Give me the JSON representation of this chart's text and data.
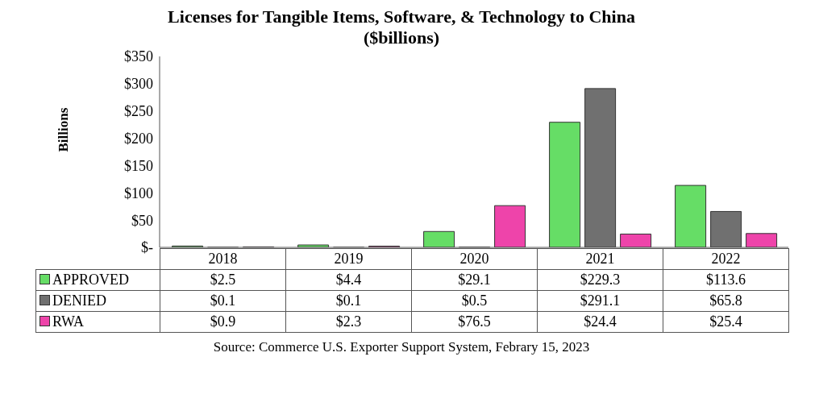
{
  "chart_data": {
    "type": "bar",
    "title": "Licenses for Tangible Items, Software, & Technology to China",
    "subtitle": "($billions)",
    "ylabel": "Billions",
    "categories": [
      "2018",
      "2019",
      "2020",
      "2021",
      "2022"
    ],
    "series": [
      {
        "name": "APPROVED",
        "color": "#66dd66",
        "values": [
          2.5,
          4.4,
          29.1,
          229.3,
          113.6
        ],
        "value_labels": [
          "$2.5",
          "$4.4",
          "$29.1",
          "$229.3",
          "$113.6"
        ]
      },
      {
        "name": "DENIED",
        "color": "#707070",
        "values": [
          0.1,
          0.1,
          0.5,
          291.1,
          65.8
        ],
        "value_labels": [
          "$0.1",
          "$0.1",
          "$0.5",
          "$291.1",
          "$65.8"
        ]
      },
      {
        "name": "RWA",
        "color": "#ee44aa",
        "values": [
          0.9,
          2.3,
          76.5,
          24.4,
          25.4
        ],
        "value_labels": [
          "$0.9",
          "$2.3",
          "$76.5",
          "$24.4",
          "$25.4"
        ]
      }
    ],
    "ylim": [
      0,
      350
    ],
    "yticks": [
      {
        "value": 0,
        "label": "$-"
      },
      {
        "value": 50,
        "label": "$50"
      },
      {
        "value": 100,
        "label": "$100"
      },
      {
        "value": 150,
        "label": "$150"
      },
      {
        "value": 200,
        "label": "$200"
      },
      {
        "value": 250,
        "label": "$250"
      },
      {
        "value": 300,
        "label": "$300"
      },
      {
        "value": 350,
        "label": "$350"
      }
    ],
    "grid": false,
    "legend": "bottom left",
    "annotations": [
      "Source: Commerce U.S. Exporter Support System, Febrary 15, 2023"
    ]
  }
}
